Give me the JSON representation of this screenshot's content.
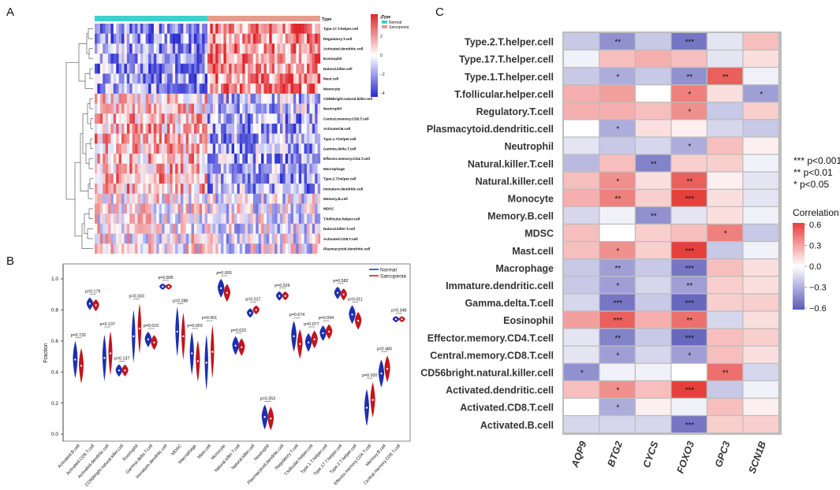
{
  "panel_labels": {
    "a": "A",
    "b": "B",
    "c": "C"
  },
  "legend_c": {
    "sig1": "*** p<0.001",
    "sig2": "** p<0.01",
    "sig3": "* p<0.05",
    "title": "Correlation",
    "ticks": [
      "0.6",
      "0.3",
      "0.0",
      "−0.3",
      "−0.6"
    ]
  },
  "colors": {
    "high": "#e0262b",
    "low": "#2a2cd0",
    "normal_bar": "#3fcfcf",
    "sarcopenia_bar": "#e79b8d",
    "normal_violin": "#1d2fb0",
    "sarcopenia_violin": "#c1161e"
  },
  "chart_data": [
    {
      "id": "heatmap-a",
      "type": "heatmap",
      "title": "",
      "rows": [
        "Type.17.T.helper.cell",
        "Regulatory.T.cell",
        "Activated.dendritic.cell",
        "Eosinophil",
        "Natural.killer.cell",
        "Mast.cell",
        "Monocyte",
        "CD56bright.natural.killer.cell",
        "Neutrophil",
        "Central.memory.CD8.T.cell",
        "Activated.B.cell",
        "Type.1.T.helper.cell",
        "Gamma.delta.T.cell",
        "Effector.memory.CD4.T.cell",
        "Macrophage",
        "Type.2.T.helper.cell",
        "Immature.dendritic.cell",
        "Memory.B.cell",
        "MDSC",
        "T.follicular.helper.cell",
        "Natural.killer.T.cell",
        "Activated.CD8.T.cell",
        "Plasmacytoid.dendritic.cell"
      ],
      "annotation": {
        "label": "Type",
        "groups": [
          "Normal",
          "Sarcopenia"
        ]
      },
      "legend_ticks": [
        "4",
        "2",
        "0",
        "−2",
        "−4"
      ],
      "value_range": [
        -4,
        4
      ]
    },
    {
      "id": "violin-b",
      "type": "violin",
      "ylabel": "Fraction",
      "y_ticks": [
        "0.0",
        "0.2",
        "0.4",
        "0.6",
        "0.8",
        "1.0"
      ],
      "ylim": [
        0,
        1
      ],
      "series": [
        "Normal",
        "Sarcopenia"
      ],
      "categories": [
        "Activated.B.cell",
        "Activated.CD8.T.cell",
        "Activated.dendritic.cell",
        "CD56bright.natural.killer.cell",
        "Eosinophil",
        "Gamma.delta.T.cell",
        "Immature.dendritic.cell",
        "MDSC",
        "Macrophage",
        "Mast.cell",
        "Monocyte",
        "Natural.killer.T.cell",
        "Natural.killer.cell",
        "Neutrophil",
        "Plasmacytoid.dendritic.cell",
        "Regulatory.T.cell",
        "T.follicular.helper.cell",
        "Type.1.T.helper.cell",
        "Type.17.T.helper.cell",
        "Type.2.T.helper.cell",
        "Effector.memory.CD4.T.cell",
        "Memory.B.cell",
        "Central.memory.CD8.T.cell"
      ],
      "p_values": [
        "p=0.732",
        "p=0.179",
        "p=0.137",
        "p=0.137",
        "p=0.033",
        "p=0.010",
        "p=0.805",
        "p=0.288",
        "p=0.003",
        "p=0.001",
        "p=0.003",
        "p=0.022",
        "p=0.017",
        "p=0.353",
        "p=0.526",
        "p=0.674",
        "p=0.077",
        "p=0.094",
        "p=0.582",
        "p=0.011",
        "p=0.020",
        "p=0.480",
        "p=0.348"
      ],
      "normal_median": [
        0.48,
        0.84,
        0.49,
        0.41,
        0.63,
        0.61,
        0.95,
        0.66,
        0.52,
        0.46,
        0.94,
        0.57,
        0.78,
        0.11,
        0.89,
        0.63,
        0.59,
        0.65,
        0.91,
        0.77,
        0.17,
        0.39,
        0.74
      ],
      "sarcopenia_median": [
        0.44,
        0.83,
        0.52,
        0.41,
        0.68,
        0.59,
        0.95,
        0.63,
        0.47,
        0.53,
        0.91,
        0.56,
        0.8,
        0.1,
        0.89,
        0.58,
        0.61,
        0.66,
        0.9,
        0.73,
        0.22,
        0.42,
        0.74
      ]
    },
    {
      "id": "corr-c",
      "type": "heatmap",
      "x_labels": [
        "AQP9",
        "BTG2",
        "CYCS",
        "FOXO3",
        "GPC3",
        "SCN1B"
      ],
      "y_labels": [
        "Type.2.T.helper.cell",
        "Type.17.T.helper.cell",
        "Type.1.T.helper.cell",
        "T.follicular.helper.cell",
        "Regulatory.T.cell",
        "Plasmacytoid.dendritic.cell",
        "Neutrophil",
        "Natural.killer.T.cell",
        "Natural.killer.cell",
        "Monocyte",
        "Memory.B.cell",
        "MDSC",
        "Mast.cell",
        "Macrophage",
        "Immature.dendritic.cell",
        "Gamma.delta.T.cell",
        "Eosinophil",
        "Effector.memory.CD4.T.cell",
        "Central.memory.CD8.T.cell",
        "CD56bright.natural.killer.cell",
        "Activated.dendritic.cell",
        "Activated.CD8.T.cell",
        "Activated.B.cell"
      ],
      "values": [
        [
          -0.2,
          -0.4,
          -0.2,
          -0.5,
          -0.1,
          0.2
        ],
        [
          -0.05,
          0.2,
          0.25,
          0.2,
          -0.1,
          0.1
        ],
        [
          -0.2,
          -0.3,
          -0.2,
          -0.4,
          0.5,
          -0.05
        ],
        [
          0.25,
          0.3,
          0.0,
          0.4,
          0.1,
          -0.35
        ],
        [
          0.25,
          0.25,
          0.2,
          0.35,
          -0.2,
          0.15
        ],
        [
          0.0,
          -0.3,
          0.1,
          0.05,
          -0.15,
          -0.2
        ],
        [
          -0.1,
          -0.2,
          -0.15,
          -0.3,
          0.2,
          0.05
        ],
        [
          -0.25,
          0.2,
          -0.45,
          0.15,
          0.15,
          -0.05
        ],
        [
          0.2,
          0.35,
          0.1,
          0.5,
          0.05,
          -0.1
        ],
        [
          0.25,
          0.4,
          0.15,
          0.6,
          0.1,
          -0.1
        ],
        [
          -0.15,
          -0.05,
          -0.4,
          -0.1,
          0.1,
          -0.05
        ],
        [
          0.2,
          0.0,
          0.15,
          0.2,
          0.4,
          -0.2
        ],
        [
          0.2,
          0.35,
          0.15,
          0.6,
          -0.2,
          -0.05
        ],
        [
          -0.2,
          -0.35,
          -0.2,
          -0.5,
          0.2,
          0.1
        ],
        [
          -0.2,
          -0.35,
          -0.15,
          -0.35,
          0.15,
          0.1
        ],
        [
          -0.15,
          -0.5,
          -0.2,
          -0.55,
          0.15,
          0.15
        ],
        [
          0.3,
          0.5,
          0.25,
          0.45,
          -0.15,
          0.1
        ],
        [
          -0.1,
          -0.45,
          -0.2,
          -0.55,
          0.2,
          0.15
        ],
        [
          -0.1,
          -0.35,
          -0.15,
          -0.35,
          0.2,
          0.1
        ],
        [
          -0.4,
          -0.05,
          -0.05,
          0.0,
          0.45,
          -0.15
        ],
        [
          0.2,
          0.35,
          0.2,
          0.6,
          -0.2,
          -0.05
        ],
        [
          0.0,
          -0.3,
          0.05,
          -0.05,
          0.2,
          0.05
        ],
        [
          -0.15,
          -0.15,
          -0.15,
          -0.5,
          0.15,
          0.15
        ]
      ],
      "stars": [
        [
          "",
          "**",
          "",
          "***",
          "",
          ""
        ],
        [
          "",
          "",
          "",
          "",
          "",
          ""
        ],
        [
          "",
          "*",
          "",
          "**",
          "**",
          ""
        ],
        [
          "",
          "",
          "",
          "*",
          "",
          "*"
        ],
        [
          "",
          "",
          "",
          "*",
          "",
          ""
        ],
        [
          "",
          "*",
          "",
          "",
          "",
          ""
        ],
        [
          "",
          "",
          "",
          "*",
          "",
          ""
        ],
        [
          "",
          "",
          "**",
          "",
          "",
          ""
        ],
        [
          "",
          "*",
          "",
          "**",
          "",
          ""
        ],
        [
          "",
          "**",
          "",
          "***",
          "",
          ""
        ],
        [
          "",
          "",
          "**",
          "",
          "",
          ""
        ],
        [
          "",
          "",
          "",
          "",
          "*",
          ""
        ],
        [
          "",
          "*",
          "",
          "***",
          "",
          ""
        ],
        [
          "",
          "**",
          "",
          "***",
          "",
          ""
        ],
        [
          "",
          "*",
          "",
          "**",
          "",
          ""
        ],
        [
          "",
          "***",
          "",
          "***",
          "",
          ""
        ],
        [
          "",
          "***",
          "",
          "**",
          "",
          ""
        ],
        [
          "",
          "**",
          "",
          "***",
          "",
          ""
        ],
        [
          "",
          "*",
          "",
          "*",
          "",
          ""
        ],
        [
          "*",
          "",
          "",
          "",
          "**",
          ""
        ],
        [
          "",
          "*",
          "",
          "***",
          "",
          ""
        ],
        [
          "",
          "*",
          "",
          "",
          "",
          ""
        ],
        [
          "",
          "",
          "",
          "***",
          "",
          ""
        ]
      ],
      "value_range": [
        -0.6,
        0.6
      ]
    }
  ]
}
